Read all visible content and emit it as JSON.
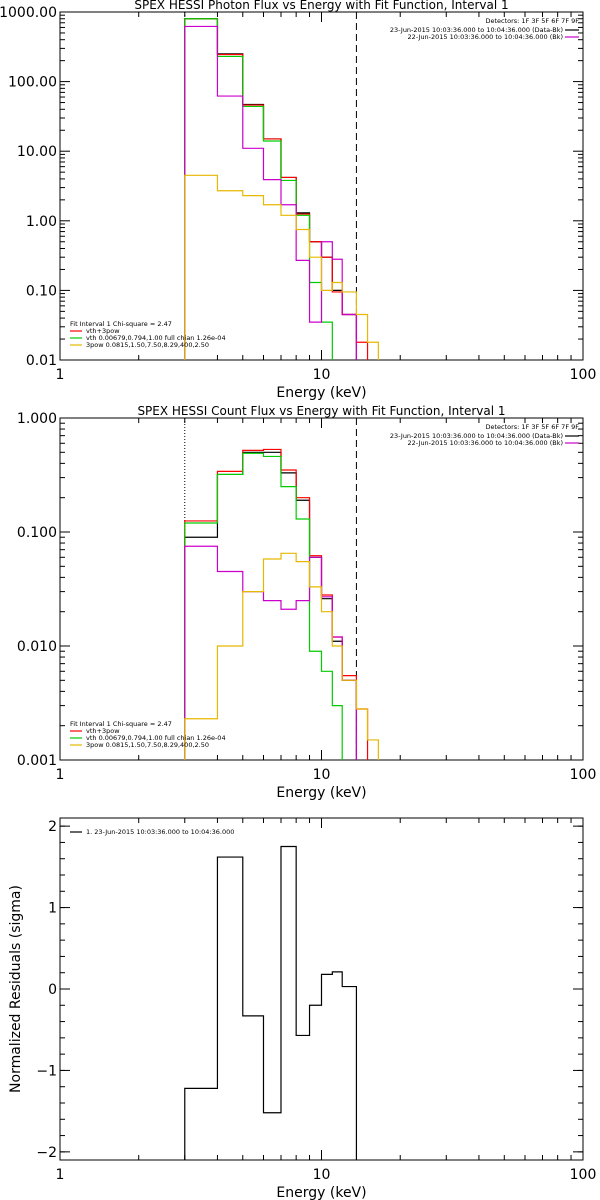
{
  "chart_data": [
    {
      "type": "line",
      "title": "SPEX HESSI Photon Flux vs Energy with Fit Function, Interval 1",
      "xlabel": "Energy (keV)",
      "ylabel": "",
      "xscale": "log",
      "yscale": "log",
      "xlim": [
        1,
        100
      ],
      "ylim": [
        0.01,
        1000
      ],
      "grid": false,
      "x_ticks": [
        {
          "v": 1,
          "label": "1"
        },
        {
          "v": 10,
          "label": "10"
        },
        {
          "v": 100,
          "label": "100"
        }
      ],
      "y_ticks": [
        {
          "v": 1000,
          "label": "1000.00"
        },
        {
          "v": 100,
          "label": "100.00"
        },
        {
          "v": 10,
          "label": "10.00"
        },
        {
          "v": 1,
          "label": "1.00"
        },
        {
          "v": 0.1,
          "label": "0.10"
        },
        {
          "v": 0.01,
          "label": "0.01"
        }
      ],
      "vlines": [
        {
          "x": 3.0,
          "style": "dotted",
          "color": "#000000"
        },
        {
          "x": 13.6,
          "style": "dashed",
          "color": "#000000"
        }
      ],
      "legend_right": {
        "header": "Detectors: 1F 3F 5F 6F 7F 9F",
        "entries": [
          {
            "text": "23-Jun-2015 10:03:36.000 to 10:04:36.000 (Data-Bk)",
            "color": "#000000"
          },
          {
            "text": "22-Jun-2015 10:03:36.000 to 10:04:36.000 (Bk)",
            "color": "#cc00cc"
          }
        ]
      },
      "legend_left": {
        "header": "Fit Interval 1   Chi-square = 2.47",
        "entries": [
          {
            "text": "vth+3pow",
            "color": "#ff0000"
          },
          {
            "text": "vth 0.00679,0.794,1.00  full chian 1.26e-04",
            "color": "#00cc00"
          },
          {
            "text": "3pow 0.0815,1.50,7.50,8.29,400,2.50",
            "color": "#e6b800"
          }
        ]
      },
      "series": [
        {
          "color": "#000000",
          "edges": [
            3.0,
            4.0,
            5.0,
            6.0,
            7.0,
            8.0,
            9.0,
            10.0,
            11.0,
            12.0,
            13.6
          ],
          "values": [
            800,
            250,
            47,
            15,
            4.2,
            1.3,
            0.5,
            0.3,
            0.1,
            0.045
          ]
        },
        {
          "color": "#ff0000",
          "edges": [
            3.0,
            4.0,
            5.0,
            6.0,
            7.0,
            8.0,
            9.0,
            10.0,
            11.0,
            12.0,
            13.6,
            15.0
          ],
          "values": [
            800,
            245,
            46,
            15,
            4.2,
            1.25,
            0.5,
            0.3,
            0.095,
            0.045,
            0.018
          ]
        },
        {
          "color": "#00cc00",
          "edges": [
            3.0,
            4.0,
            5.0,
            6.0,
            7.0,
            8.0,
            9.0,
            10.0,
            11.0
          ],
          "values": [
            800,
            230,
            44,
            14,
            3.8,
            1.2,
            0.13,
            0.035
          ]
        },
        {
          "color": "#cc00cc",
          "edges": [
            3.0,
            4.0,
            5.0,
            6.0,
            7.0,
            8.0,
            9.0,
            10.0,
            11.0,
            12.0,
            13.6
          ],
          "values": [
            620,
            62,
            11,
            3.9,
            1.7,
            0.27,
            0.035,
            0.5,
            0.28,
            0.045
          ]
        },
        {
          "color": "#e6b800",
          "edges": [
            3.0,
            4.0,
            5.0,
            6.0,
            7.0,
            8.0,
            9.0,
            10.0,
            11.0,
            12.0,
            13.6,
            15.0,
            16.5
          ],
          "values": [
            4.5,
            2.7,
            2.3,
            1.7,
            1.2,
            0.75,
            0.3,
            0.1,
            0.13,
            0.095,
            0.045,
            0.018
          ]
        }
      ]
    },
    {
      "type": "line",
      "title": "SPEX HESSI Count Flux vs Energy with Fit Function, Interval 1",
      "xlabel": "Energy (keV)",
      "ylabel": "",
      "xscale": "log",
      "yscale": "log",
      "xlim": [
        1,
        100
      ],
      "ylim": [
        0.001,
        1
      ],
      "grid": false,
      "x_ticks": [
        {
          "v": 1,
          "label": "1"
        },
        {
          "v": 10,
          "label": "10"
        },
        {
          "v": 100,
          "label": "100"
        }
      ],
      "y_ticks": [
        {
          "v": 1,
          "label": "1.000"
        },
        {
          "v": 0.1,
          "label": "0.100"
        },
        {
          "v": 0.01,
          "label": "0.010"
        },
        {
          "v": 0.001,
          "label": "0.001"
        }
      ],
      "vlines": [
        {
          "x": 3.0,
          "style": "dotted",
          "color": "#000000"
        },
        {
          "x": 13.6,
          "style": "dashed",
          "color": "#000000"
        }
      ],
      "legend_right": {
        "header": "Detectors: 1F 3F 5F 6F 7F 9F",
        "entries": [
          {
            "text": "23-Jun-2015 10:03:36.000 to 10:04:36.000 (Data-Bk)",
            "color": "#000000"
          },
          {
            "text": "22-Jun-2015 10:03:36.000 to 10:04:36.000 (Bk)",
            "color": "#cc00cc"
          }
        ]
      },
      "legend_left": {
        "header": "Fit Interval 1   Chi-square = 2.47",
        "entries": [
          {
            "text": "vth+3pow",
            "color": "#ff0000"
          },
          {
            "text": "vth 0.00679,0.794,1.00  full chian 1.26e-04",
            "color": "#00cc00"
          },
          {
            "text": "3pow 0.0815,1.50,7.50,8.29,400,2.50",
            "color": "#e6b800"
          }
        ]
      },
      "series": [
        {
          "color": "#000000",
          "edges": [
            3.0,
            4.0,
            5.0,
            6.0,
            7.0,
            8.0,
            9.0,
            10.0,
            11.0,
            12.0,
            13.6
          ],
          "values": [
            0.09,
            0.32,
            0.5,
            0.5,
            0.33,
            0.19,
            0.06,
            0.026,
            0.011,
            0.005
          ]
        },
        {
          "color": "#ff0000",
          "edges": [
            3.0,
            4.0,
            5.0,
            6.0,
            7.0,
            8.0,
            9.0,
            10.0,
            11.0,
            12.0,
            13.6,
            15.0
          ],
          "values": [
            0.125,
            0.34,
            0.52,
            0.53,
            0.35,
            0.2,
            0.062,
            0.028,
            0.012,
            0.0055,
            0.0028
          ]
        },
        {
          "color": "#00cc00",
          "edges": [
            3.0,
            4.0,
            5.0,
            6.0,
            7.0,
            8.0,
            9.0,
            10.0,
            11.0,
            12.0
          ],
          "values": [
            0.12,
            0.32,
            0.49,
            0.46,
            0.25,
            0.13,
            0.009,
            0.006,
            0.003
          ]
        },
        {
          "color": "#cc00cc",
          "edges": [
            3.0,
            4.0,
            5.0,
            6.0,
            7.0,
            8.0,
            9.0,
            10.0,
            11.0,
            12.0,
            13.6
          ],
          "values": [
            0.075,
            0.045,
            0.03,
            0.025,
            0.021,
            0.025,
            0.06,
            0.027,
            0.012,
            0.005
          ]
        },
        {
          "color": "#e6b800",
          "edges": [
            3.0,
            4.0,
            5.0,
            6.0,
            7.0,
            8.0,
            9.0,
            10.0,
            11.0,
            12.0,
            13.6,
            15.0,
            16.5
          ],
          "values": [
            0.0023,
            0.01,
            0.03,
            0.058,
            0.065,
            0.055,
            0.033,
            0.02,
            0.01,
            0.005,
            0.0028,
            0.0015
          ]
        }
      ]
    },
    {
      "type": "line",
      "title": "",
      "xlabel": "Energy (keV)",
      "ylabel": "Normalized Residuals (sigma)",
      "xscale": "log",
      "yscale": "linear",
      "xlim": [
        1,
        100
      ],
      "ylim": [
        -2.1,
        2.1
      ],
      "grid": false,
      "x_ticks": [
        {
          "v": 1,
          "label": "1"
        },
        {
          "v": 10,
          "label": "10"
        },
        {
          "v": 100,
          "label": "100"
        }
      ],
      "y_ticks": [
        {
          "v": 2,
          "label": "2"
        },
        {
          "v": 1,
          "label": "1"
        },
        {
          "v": 0,
          "label": "0"
        },
        {
          "v": -1,
          "label": "−1"
        },
        {
          "v": -2,
          "label": "−2"
        }
      ],
      "vlines": [],
      "legend_right": null,
      "legend_left": {
        "header": "",
        "position": "top-left",
        "entries": [
          {
            "text": "1. 23-Jun-2015 10:03:36.000 to 10:04:36.000",
            "color": "#000000"
          }
        ]
      },
      "series": [
        {
          "color": "#000000",
          "baseline": -2.1,
          "edges": [
            3.0,
            4.0,
            5.0,
            6.0,
            7.0,
            8.0,
            9.0,
            10.0,
            11.0,
            12.0,
            13.6
          ],
          "values": [
            -1.22,
            1.62,
            -0.33,
            -1.52,
            1.75,
            -0.57,
            -0.2,
            0.18,
            0.21,
            0.03
          ]
        }
      ]
    }
  ]
}
